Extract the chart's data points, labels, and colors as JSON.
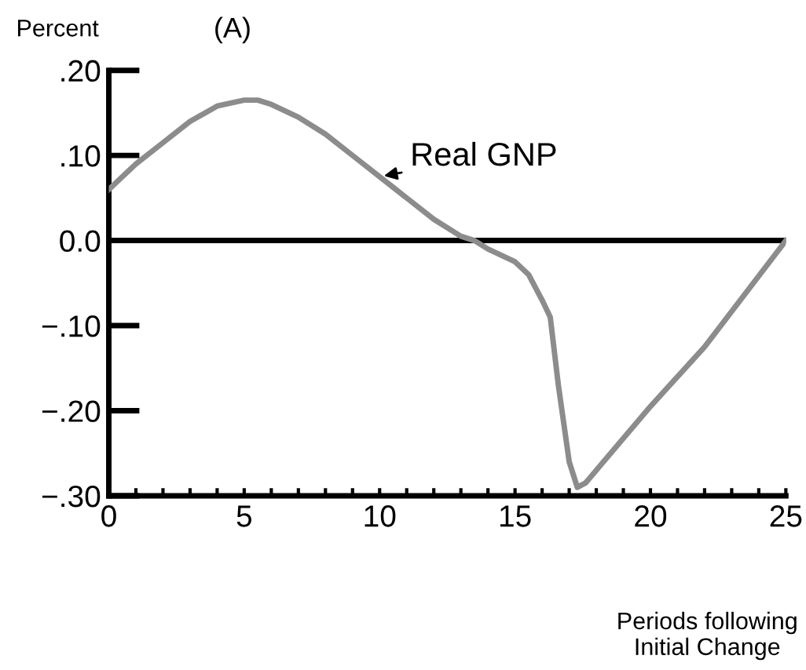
{
  "chart_data": {
    "type": "line",
    "title": "(A)",
    "ylabel": "Percent",
    "xlabel": "Periods following\nInitial Change",
    "x": [
      0,
      0.5,
      1,
      2,
      3,
      4,
      5,
      5.5,
      6,
      7,
      8,
      9,
      10,
      11,
      12,
      13,
      13.5,
      14,
      15,
      15.5,
      16,
      16.3,
      16.6,
      17,
      17.3,
      17.6,
      18,
      20,
      22,
      25
    ],
    "series": [
      {
        "name": "Real GNP",
        "color": "#8c8c8c",
        "values": [
          0.06,
          0.075,
          0.09,
          0.115,
          0.14,
          0.158,
          0.165,
          0.165,
          0.16,
          0.145,
          0.125,
          0.1,
          0.075,
          0.05,
          0.025,
          0.005,
          0.0,
          -0.01,
          -0.025,
          -0.04,
          -0.07,
          -0.09,
          -0.17,
          -0.26,
          -0.29,
          -0.285,
          -0.27,
          -0.195,
          -0.125,
          0.0
        ]
      }
    ],
    "xlim": [
      0,
      25
    ],
    "ylim": [
      -0.3,
      0.2
    ],
    "xticks": [
      0,
      {
        "value": 1,
        "label": null
      },
      {
        "value": 2,
        "label": null
      },
      {
        "value": 3,
        "label": null
      },
      {
        "value": 4,
        "label": null
      },
      5,
      {
        "value": 6,
        "label": null
      },
      {
        "value": 7,
        "label": null
      },
      {
        "value": 8,
        "label": null
      },
      {
        "value": 9,
        "label": null
      },
      10,
      {
        "value": 11,
        "label": null
      },
      {
        "value": 12,
        "label": null
      },
      {
        "value": 13,
        "label": null
      },
      {
        "value": 14,
        "label": null
      },
      15,
      {
        "value": 16,
        "label": null
      },
      {
        "value": 17,
        "label": null
      },
      {
        "value": 18,
        "label": null
      },
      {
        "value": 19,
        "label": null
      },
      20,
      {
        "value": 21,
        "label": null
      },
      {
        "value": 22,
        "label": null
      },
      {
        "value": 23,
        "label": null
      },
      {
        "value": 24,
        "label": null
      },
      25
    ],
    "yticks": [
      {
        "value": -0.3,
        "label": "−.30"
      },
      {
        "value": -0.2,
        "label": "−.20"
      },
      {
        "value": -0.1,
        "label": "−.10"
      },
      {
        "value": 0.0,
        "label": "0.0"
      },
      {
        "value": 0.1,
        "label": ".10"
      },
      {
        "value": 0.2,
        "label": ".20"
      }
    ],
    "ref_lines": [
      {
        "axis": "y",
        "value": 0.0,
        "color": "#000000"
      }
    ],
    "grid": false,
    "marker": "none",
    "line_style": "solid"
  }
}
